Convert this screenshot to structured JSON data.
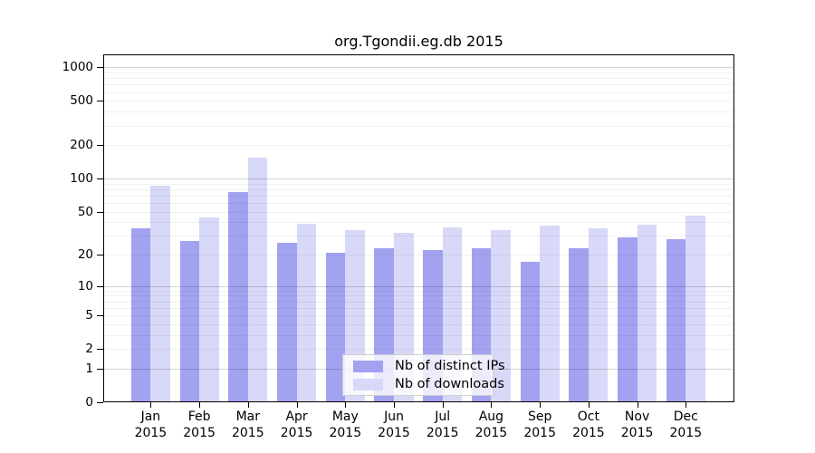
{
  "chart_data": {
    "type": "bar",
    "title": "org.Tgondii.eg.db 2015",
    "categories": [
      "Jan",
      "Feb",
      "Mar",
      "Apr",
      "May",
      "Jun",
      "Jul",
      "Aug",
      "Sep",
      "Oct",
      "Nov",
      "Dec"
    ],
    "year_label": "2015",
    "series": [
      {
        "name": "Nb of distinct IPs",
        "color": "#a2a2f0",
        "values": [
          35,
          27,
          75,
          26,
          21,
          23,
          22,
          23,
          17,
          23,
          29,
          28
        ]
      },
      {
        "name": "Nb of downloads",
        "color": "#d8d8f8",
        "values": [
          86,
          44,
          154,
          39,
          34,
          32,
          36,
          34,
          37,
          35,
          38,
          46
        ]
      }
    ],
    "yticks": [
      0,
      1,
      2,
      5,
      10,
      20,
      50,
      100,
      200,
      500,
      1000
    ],
    "major_gridlines": [
      1,
      10,
      100,
      1000
    ],
    "minor_gridlines": [
      2,
      3,
      4,
      5,
      6,
      7,
      8,
      9,
      20,
      30,
      40,
      50,
      60,
      70,
      80,
      90,
      200,
      300,
      400,
      500,
      600,
      700,
      800,
      900
    ],
    "scale": "log1p",
    "ylim": [
      0,
      1300
    ],
    "grid": true,
    "legend_position": "bottom-center"
  }
}
